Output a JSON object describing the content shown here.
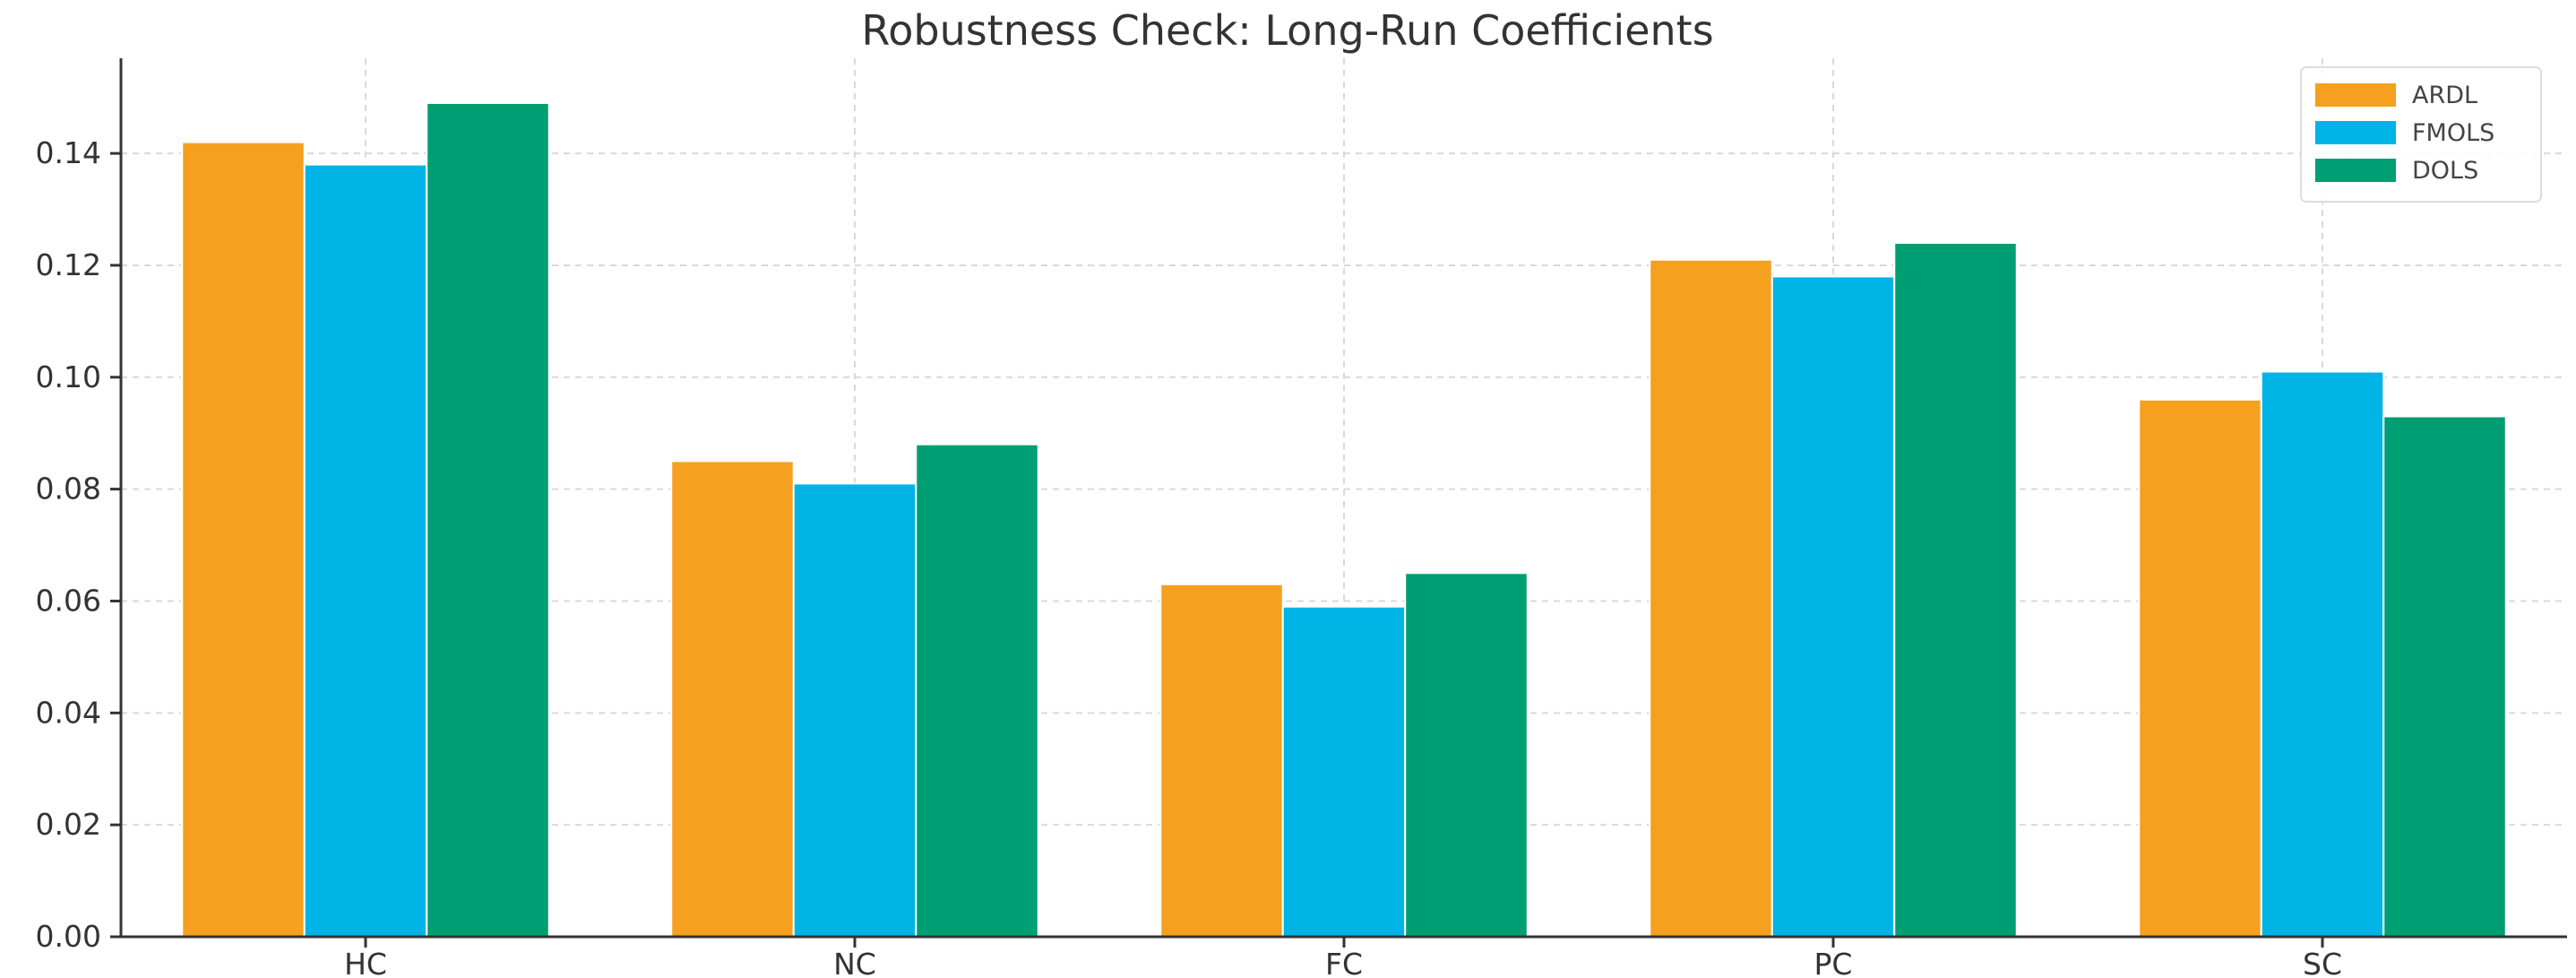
{
  "chart_data": {
    "type": "bar",
    "title": "Robustness Check: Long-Run Coefficients",
    "xlabel": "",
    "ylabel": "",
    "categories": [
      "HC",
      "NC",
      "FC",
      "PC",
      "SC"
    ],
    "series": [
      {
        "name": "ARDL",
        "color": "#f5a01e",
        "values": [
          0.142,
          0.085,
          0.063,
          0.121,
          0.096
        ]
      },
      {
        "name": "FMOLS",
        "color": "#00b4e6",
        "values": [
          0.138,
          0.081,
          0.059,
          0.118,
          0.101
        ]
      },
      {
        "name": "DOLS",
        "color": "#009e73",
        "values": [
          0.149,
          0.088,
          0.065,
          0.124,
          0.093
        ]
      }
    ],
    "ylim": [
      0,
      0.157
    ],
    "yticks": [
      "0.00",
      "0.02",
      "0.04",
      "0.06",
      "0.08",
      "0.10",
      "0.12",
      "0.14"
    ],
    "grid": true,
    "legend_position": "top-right"
  }
}
